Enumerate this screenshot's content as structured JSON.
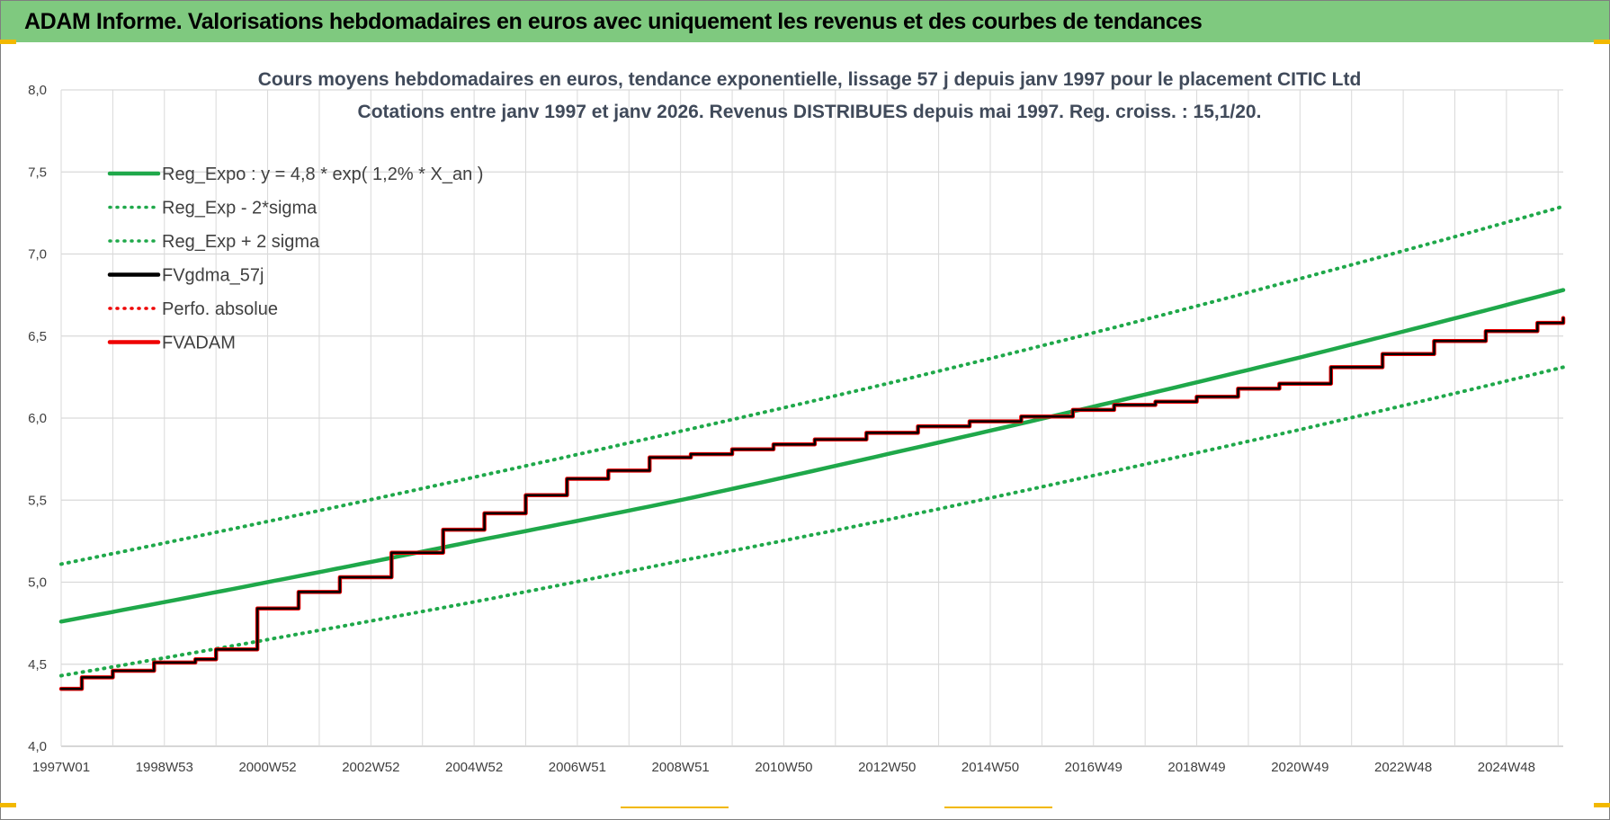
{
  "banner": {
    "title": "ADAM Informe. Valorisations hebdomadaires en euros avec uniquement les revenus et des courbes de tendances"
  },
  "colors": {
    "banner_bg": "#7fc97f",
    "trend_green": "#1fa84a",
    "perf_red": "#ee0000",
    "fv_black": "#000000",
    "grid": "#d9d9d9",
    "accent_yellow": "#f2b800"
  },
  "chart_data": {
    "type": "line",
    "title": "Cours moyens hebdomadaires en euros, tendance exponentielle, lissage 57 j depuis janv 1997 pour le placement CITIC Ltd",
    "subtitle": "Cotations entre janv 1997 et janv 2026. Revenus DISTRIBUES depuis mai 1997.  Reg. croiss. : 15,1/20.",
    "xlabel": "",
    "ylabel": "",
    "ylim": [
      4.0,
      8.0
    ],
    "xlim": [
      1997.0,
      2026.1
    ],
    "y_ticks": [
      "4,0",
      "4,5",
      "5,0",
      "5,5",
      "6,0",
      "6,5",
      "7,0",
      "7,5",
      "8,0"
    ],
    "x_ticks": [
      "1997W01",
      "1998W53",
      "2000W52",
      "2002W52",
      "2004W52",
      "2006W51",
      "2008W51",
      "2010W50",
      "2012W50",
      "2014W50",
      "2016W49",
      "2018W49",
      "2020W49",
      "2022W48",
      "2024W48"
    ],
    "x_tick_positions": [
      1997.0,
      1999.0,
      2001.0,
      2003.0,
      2005.0,
      2007.0,
      2009.0,
      2011.0,
      2013.0,
      2015.0,
      2017.0,
      2019.0,
      2021.0,
      2023.0,
      2025.0
    ],
    "grid": true,
    "legend_position": "top-left",
    "legend": [
      {
        "label": "Reg_Expo : y = 4,8 * exp( 1,2% *  X_an )",
        "color": "#1fa84a",
        "style": "solid"
      },
      {
        "label": "Reg_Exp - 2*sigma",
        "color": "#1fa84a",
        "style": "dotted"
      },
      {
        "label": "Reg_Exp + 2 sigma",
        "color": "#1fa84a",
        "style": "dotted"
      },
      {
        "label": "FVgdma_57j",
        "color": "#000000",
        "style": "solid"
      },
      {
        "label": "Perfo. absolue",
        "color": "#ee0000",
        "style": "dotted"
      },
      {
        "label": "FVADAM",
        "color": "#ee0000",
        "style": "solid"
      }
    ],
    "series": [
      {
        "name": "Reg_Expo : y = 4,8 * exp( 1,2% *  X_an )",
        "x": [
          1997.0,
          2001.0,
          2005.0,
          2009.0,
          2013.0,
          2017.0,
          2021.0,
          2026.1
        ],
        "values": [
          4.76,
          5.0,
          5.25,
          5.5,
          5.78,
          6.07,
          6.37,
          6.78
        ]
      },
      {
        "name": "Reg_Exp - 2*sigma",
        "x": [
          1997.0,
          2001.0,
          2005.0,
          2009.0,
          2013.0,
          2017.0,
          2021.0,
          2026.1
        ],
        "values": [
          4.43,
          4.65,
          4.88,
          5.13,
          5.38,
          5.65,
          5.93,
          6.31
        ]
      },
      {
        "name": "Reg_Exp + 2 sigma",
        "x": [
          1997.0,
          2001.0,
          2005.0,
          2009.0,
          2013.0,
          2017.0,
          2021.0,
          2026.1
        ],
        "values": [
          5.11,
          5.37,
          5.64,
          5.92,
          6.21,
          6.52,
          6.85,
          7.29
        ]
      },
      {
        "name": "FVADAM",
        "x": [
          1997.0,
          1997.4,
          1998.0,
          1998.8,
          1999.6,
          2000.0,
          2000.8,
          2001.6,
          2002.4,
          2003.4,
          2004.4,
          2005.2,
          2006.0,
          2006.8,
          2007.6,
          2008.4,
          2009.2,
          2010.0,
          2010.8,
          2011.6,
          2012.6,
          2013.6,
          2014.6,
          2015.6,
          2016.6,
          2017.4,
          2018.2,
          2019.0,
          2019.8,
          2020.6,
          2021.6,
          2022.6,
          2023.6,
          2024.6,
          2025.6,
          2026.1
        ],
        "values": [
          4.35,
          4.42,
          4.46,
          4.51,
          4.53,
          4.59,
          4.84,
          4.94,
          5.03,
          5.18,
          5.32,
          5.42,
          5.53,
          5.63,
          5.68,
          5.76,
          5.78,
          5.81,
          5.84,
          5.87,
          5.91,
          5.95,
          5.98,
          6.01,
          6.05,
          6.08,
          6.1,
          6.13,
          6.18,
          6.21,
          6.31,
          6.39,
          6.47,
          6.53,
          6.58,
          6.61
        ]
      },
      {
        "name": "FVgdma_57j",
        "x": [
          1997.0,
          1997.4,
          1998.0,
          1998.8,
          1999.6,
          2000.0,
          2000.8,
          2001.6,
          2002.4,
          2003.4,
          2004.4,
          2005.2,
          2006.0,
          2006.8,
          2007.6,
          2008.4,
          2009.2,
          2010.0,
          2010.8,
          2011.6,
          2012.6,
          2013.6,
          2014.6,
          2015.6,
          2016.6,
          2017.4,
          2018.2,
          2019.0,
          2019.8,
          2020.6,
          2021.6,
          2022.6,
          2023.6,
          2024.6,
          2025.6,
          2026.1
        ],
        "values": [
          4.35,
          4.42,
          4.46,
          4.51,
          4.53,
          4.59,
          4.84,
          4.94,
          5.03,
          5.18,
          5.32,
          5.42,
          5.53,
          5.63,
          5.68,
          5.76,
          5.78,
          5.81,
          5.84,
          5.87,
          5.91,
          5.95,
          5.98,
          6.01,
          6.05,
          6.08,
          6.1,
          6.13,
          6.18,
          6.21,
          6.31,
          6.39,
          6.47,
          6.53,
          6.58,
          6.61
        ]
      }
    ]
  }
}
